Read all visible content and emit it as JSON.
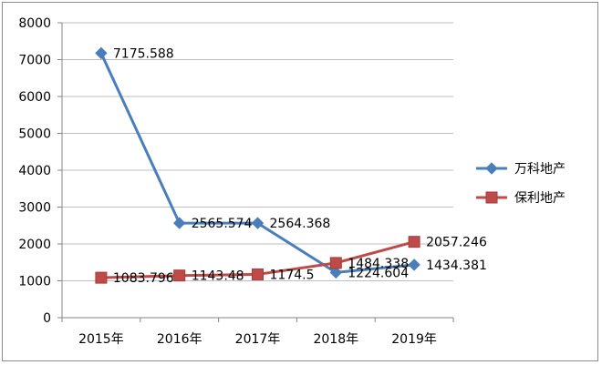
{
  "chart_data": {
    "type": "line",
    "title": "",
    "xlabel": "",
    "ylabel": "",
    "categories": [
      "2015年",
      "2016年",
      "2017年",
      "2018年",
      "2019年"
    ],
    "ylim": [
      0,
      8000
    ],
    "yticks": [
      0,
      1000,
      2000,
      3000,
      4000,
      5000,
      6000,
      7000,
      8000
    ],
    "ytick_labels": [
      "0",
      "1000",
      "2000",
      "3000",
      "4000",
      "5000",
      "6000",
      "7000",
      "8000"
    ],
    "grid": true,
    "legend_position": "right",
    "series": [
      {
        "name": "万科地产",
        "values": [
          7175.588,
          2565.574,
          2564.368,
          1224.604,
          1434.381
        ],
        "labels": [
          "7175.588",
          "2565.574",
          "2564.368",
          "1224.604",
          "1434.381"
        ],
        "color": "#4a7ebb",
        "marker": "diamond"
      },
      {
        "name": "保利地产",
        "values": [
          1083.796,
          1143.48,
          1174.5,
          1484.338,
          2057.246
        ],
        "labels": [
          "1083.796",
          "1143.48",
          "1174.5",
          "1484.338",
          "2057.246"
        ],
        "color": "#be4b48",
        "marker": "square"
      }
    ]
  }
}
